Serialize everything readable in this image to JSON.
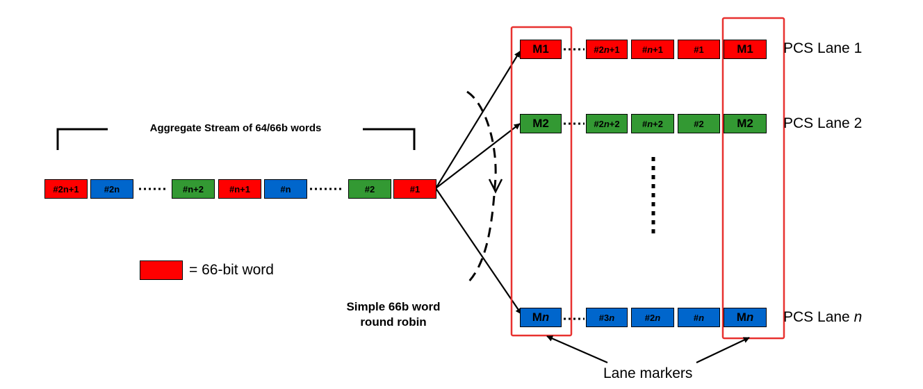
{
  "title": "Aggregate Stream of 64/66b words",
  "colors": {
    "red": "#ff0000",
    "green": "#339933",
    "blue": "#0066cc",
    "frame": "#e8312f"
  },
  "stream": {
    "words": [
      {
        "pre": "#2n+1",
        "ital": "",
        "post": "",
        "color": "red"
      },
      {
        "pre": "#2n",
        "ital": "",
        "post": "",
        "color": "blue"
      },
      {
        "pre": "#n+2",
        "ital": "",
        "post": "",
        "color": "green"
      },
      {
        "pre": "#n+1",
        "ital": "",
        "post": "",
        "color": "red"
      },
      {
        "pre": "#n",
        "ital": "",
        "post": "",
        "color": "blue"
      },
      {
        "pre": "#2",
        "ital": "",
        "post": "",
        "color": "green"
      },
      {
        "pre": "#1",
        "ital": "",
        "post": "",
        "color": "red"
      }
    ]
  },
  "legend": {
    "text": "= 66-bit word",
    "color": "red"
  },
  "round_robin": {
    "line1": "Simple 66b word",
    "line2": "round robin"
  },
  "lanes": [
    {
      "label_pre": "PCS Lane 1",
      "label_ital": "",
      "color": "red",
      "marker_in": {
        "pre": "M1",
        "ital": ""
      },
      "words": [
        {
          "pre": "#2",
          "ital": "n",
          "post": "+1"
        },
        {
          "pre": "#",
          "ital": "n",
          "post": "+1"
        },
        {
          "pre": "#1",
          "ital": "",
          "post": ""
        }
      ],
      "marker_out": {
        "pre": "M1",
        "ital": ""
      }
    },
    {
      "label_pre": "PCS Lane 2",
      "label_ital": "",
      "color": "green",
      "marker_in": {
        "pre": "M2",
        "ital": ""
      },
      "words": [
        {
          "pre": "#2",
          "ital": "n",
          "post": "+2"
        },
        {
          "pre": "#",
          "ital": "n",
          "post": "+2"
        },
        {
          "pre": "#2",
          "ital": "",
          "post": ""
        }
      ],
      "marker_out": {
        "pre": "M2",
        "ital": ""
      }
    },
    {
      "label_pre": "PCS Lane ",
      "label_ital": "n",
      "color": "blue",
      "marker_in": {
        "pre": "M",
        "ital": "n"
      },
      "words": [
        {
          "pre": "#3",
          "ital": "n",
          "post": ""
        },
        {
          "pre": "#2",
          "ital": "n",
          "post": ""
        },
        {
          "pre": "#",
          "ital": "n",
          "post": ""
        }
      ],
      "marker_out": {
        "pre": "M",
        "ital": "n"
      }
    }
  ],
  "lane_markers_label": "Lane markers"
}
